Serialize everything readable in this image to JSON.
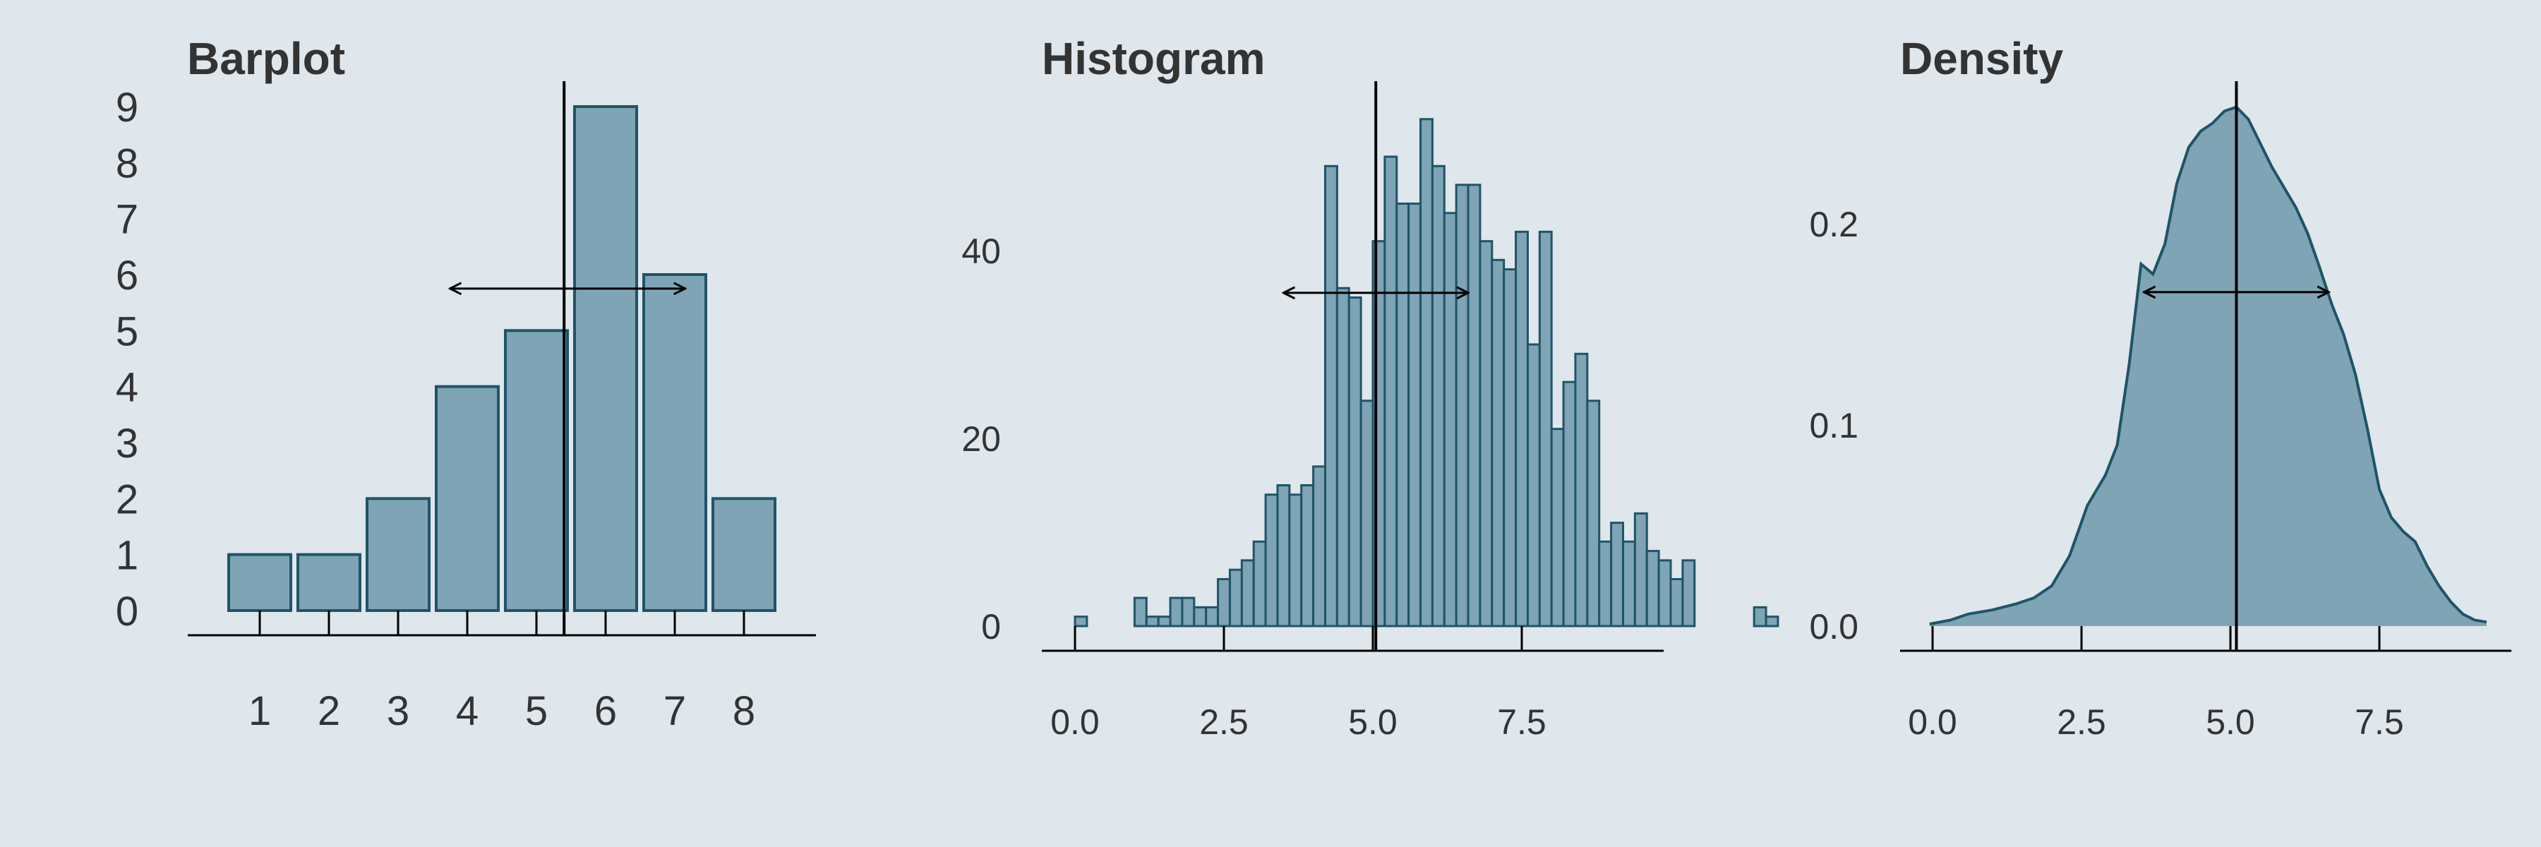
{
  "colors": {
    "background": "#dfe6ec",
    "fill": "#7fa4b5",
    "stroke": "#1f5468",
    "line": "#000000",
    "text": "#333333"
  },
  "chart_data": [
    {
      "type": "bar",
      "title": "Barplot",
      "categories": [
        "1",
        "2",
        "3",
        "4",
        "5",
        "6",
        "7",
        "8"
      ],
      "values": [
        1,
        1,
        2,
        4,
        5,
        9,
        6,
        2
      ],
      "ylim": [
        0,
        9
      ],
      "yticks": [
        "0",
        "1",
        "2",
        "3",
        "4",
        "5",
        "6",
        "7",
        "8",
        "9"
      ],
      "xticks": [
        "1",
        "2",
        "3",
        "4",
        "5",
        "6",
        "7",
        "8"
      ],
      "mean_line": 5.4,
      "arrow": {
        "from": 3.75,
        "to": 7.15,
        "y": 5.75
      },
      "grid": false
    },
    {
      "type": "bar",
      "title": "Histogram",
      "bins_start": 0.0,
      "bin_width": 0.2,
      "values": [
        1,
        0,
        0,
        0,
        0,
        3,
        1,
        1,
        3,
        3,
        2,
        2,
        5,
        6,
        7,
        9,
        14,
        15,
        14,
        15,
        17,
        49,
        36,
        35,
        24,
        41,
        50,
        45,
        45,
        54,
        49,
        44,
        47,
        47,
        41,
        39,
        38,
        42,
        30,
        42,
        21,
        26,
        29,
        24,
        9,
        11,
        9,
        12,
        8,
        7,
        5,
        7,
        0,
        0,
        0,
        0,
        0,
        2,
        1
      ],
      "xlim": [
        -0.5,
        9.8
      ],
      "ylim": [
        0,
        55
      ],
      "xticks": [
        "0.0",
        "2.5",
        "5.0",
        "7.5"
      ],
      "xtick_values": [
        0,
        2.5,
        5,
        7.5
      ],
      "yticks": [
        "0",
        "20",
        "40"
      ],
      "ytick_values": [
        0,
        20,
        40
      ],
      "mean_line": 5.05,
      "arrow": {
        "from": 3.5,
        "to": 6.6,
        "y": 35.5
      },
      "grid": false
    },
    {
      "type": "area",
      "title": "Density",
      "x": [
        -0.05,
        0.3,
        0.6,
        1.0,
        1.4,
        1.7,
        2.0,
        2.3,
        2.6,
        2.9,
        3.1,
        3.3,
        3.5,
        3.7,
        3.9,
        4.1,
        4.3,
        4.5,
        4.7,
        4.9,
        5.1,
        5.3,
        5.5,
        5.7,
        5.9,
        6.1,
        6.3,
        6.5,
        6.7,
        6.9,
        7.1,
        7.3,
        7.5,
        7.7,
        7.9,
        8.1,
        8.3,
        8.5,
        8.7,
        8.9,
        9.1,
        9.3
      ],
      "y": [
        0.001,
        0.003,
        0.006,
        0.008,
        0.011,
        0.014,
        0.02,
        0.035,
        0.06,
        0.075,
        0.09,
        0.13,
        0.18,
        0.175,
        0.19,
        0.22,
        0.238,
        0.246,
        0.25,
        0.256,
        0.258,
        0.252,
        0.24,
        0.228,
        0.218,
        0.208,
        0.195,
        0.178,
        0.16,
        0.145,
        0.125,
        0.098,
        0.068,
        0.054,
        0.047,
        0.042,
        0.03,
        0.02,
        0.012,
        0.006,
        0.003,
        0.002
      ],
      "xlim": [
        -0.5,
        9.8
      ],
      "ylim": [
        0,
        0.26
      ],
      "xticks": [
        "0.0",
        "2.5",
        "5.0",
        "7.5"
      ],
      "xtick_values": [
        0,
        2.5,
        5,
        7.5
      ],
      "yticks": [
        "0.0",
        "0.1",
        "0.2"
      ],
      "ytick_values": [
        0,
        0.1,
        0.2
      ],
      "mean_line": 5.1,
      "arrow": {
        "from": 3.55,
        "to": 6.65,
        "y": 0.166
      },
      "grid": false
    }
  ]
}
